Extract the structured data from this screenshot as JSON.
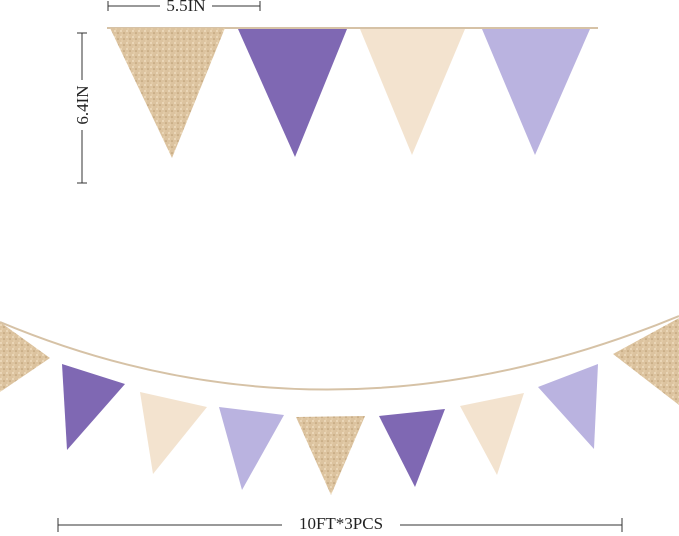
{
  "dimensions": {
    "flag_width": "5.5IN",
    "flag_height": "6.4IN",
    "total_length": "10FT*3PCS"
  }
}
